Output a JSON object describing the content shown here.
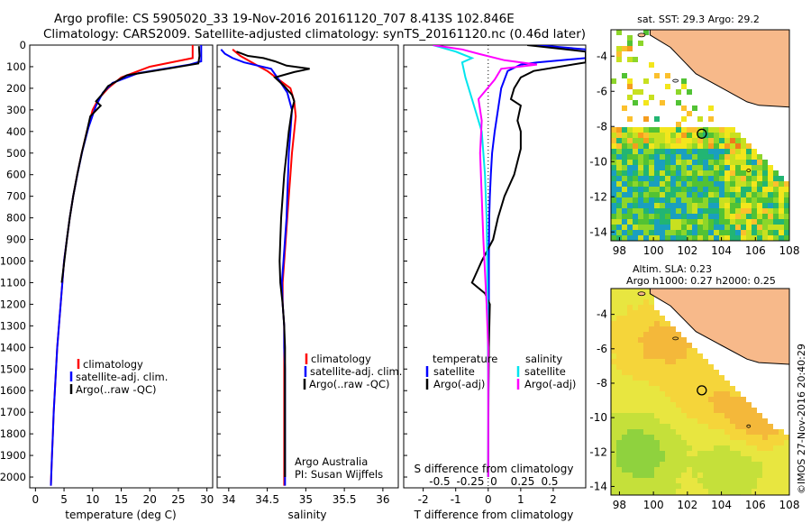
{
  "header": {
    "line1": "Argo profile: CS 5905020_33 19-Nov-2016 20161120_707 8.413S 102.846E",
    "line2": "Climatology: CARS2009. Satellite-adjusted climatology: synTS_20161120.nc (0.46d later)"
  },
  "colors": {
    "climatology": "#ff0000",
    "satellite": "#0000ff",
    "argo": "#000000",
    "sat_salinity": "#00e5ee",
    "argo_salinity": "#ff00ff",
    "land": "#f7b98a"
  },
  "chart_data": [
    {
      "type": "line",
      "id": "temperature",
      "xlabel": "temperature (deg C)",
      "ylabel": "",
      "xlim": [
        -1,
        31
      ],
      "ylim": [
        2050,
        0
      ],
      "xticks": [
        "0",
        "5",
        "10",
        "15",
        "20",
        "25",
        "30"
      ],
      "yticks": [
        "0",
        "100",
        "200",
        "300",
        "400",
        "500",
        "600",
        "700",
        "800",
        "900",
        "1000",
        "1100",
        "1200",
        "1300",
        "1400",
        "1500",
        "1600",
        "1700",
        "1800",
        "1900",
        "2000"
      ],
      "legend": [
        "climatology",
        "satellite-adj. clim.",
        "Argo(..raw -QC)"
      ],
      "series": [
        {
          "name": "climatology",
          "color": "red",
          "points": [
            [
              27.5,
              0
            ],
            [
              27.5,
              60
            ],
            [
              20,
              100
            ],
            [
              15,
              150
            ],
            [
              12.7,
              200
            ],
            [
              11,
              250
            ],
            [
              10,
              300
            ],
            [
              9,
              400
            ],
            [
              8.1,
              500
            ],
            [
              7.3,
              600
            ],
            [
              6.6,
              700
            ],
            [
              6,
              800
            ],
            [
              5.5,
              900
            ],
            [
              5,
              1000
            ],
            [
              4.7,
              1100
            ],
            [
              4.4,
              1200
            ],
            [
              4.1,
              1300
            ],
            [
              3.8,
              1400
            ],
            [
              3.6,
              1500
            ],
            [
              3.4,
              1600
            ],
            [
              3.2,
              1700
            ],
            [
              3.05,
              1800
            ],
            [
              2.9,
              1900
            ],
            [
              2.75,
              2000
            ],
            [
              2.7,
              2040
            ]
          ]
        },
        {
          "name": "satellite-adj. clim.",
          "color": "blue",
          "points": [
            [
              29,
              0
            ],
            [
              29,
              75
            ],
            [
              27,
              90
            ],
            [
              18,
              130
            ],
            [
              13.5,
              175
            ],
            [
              11.8,
              220
            ],
            [
              10.6,
              280
            ],
            [
              9.3,
              380
            ],
            [
              8.2,
              490
            ],
            [
              7.4,
              590
            ],
            [
              6.6,
              700
            ],
            [
              6,
              800
            ],
            [
              5.5,
              900
            ],
            [
              5,
              1000
            ],
            [
              4.7,
              1100
            ],
            [
              4.4,
              1200
            ],
            [
              4.1,
              1300
            ],
            [
              3.8,
              1400
            ],
            [
              3.6,
              1500
            ],
            [
              3.4,
              1600
            ],
            [
              3.2,
              1700
            ],
            [
              3.05,
              1800
            ],
            [
              2.9,
              1900
            ],
            [
              2.75,
              2000
            ],
            [
              2.7,
              2040
            ]
          ]
        },
        {
          "name": "Argo(..raw -QC)",
          "color": "black",
          "points": [
            [
              28.6,
              5
            ],
            [
              28.7,
              50
            ],
            [
              28.5,
              85
            ],
            [
              23,
              110
            ],
            [
              16,
              140
            ],
            [
              12.7,
              190
            ],
            [
              11.6,
              230
            ],
            [
              10.6,
              260
            ],
            [
              11.4,
              280
            ],
            [
              9.6,
              330
            ],
            [
              9,
              400
            ],
            [
              8.1,
              500
            ],
            [
              7.3,
              600
            ],
            [
              6.6,
              700
            ],
            [
              6,
              800
            ],
            [
              5.5,
              900
            ],
            [
              5.05,
              1000
            ],
            [
              4.6,
              1100
            ]
          ]
        }
      ]
    },
    {
      "type": "line",
      "id": "salinity",
      "xlabel": "salinity",
      "ylabel": "",
      "xlim": [
        33.85,
        36.2
      ],
      "ylim": [
        2050,
        0
      ],
      "xticks": [
        "34",
        "34.5",
        "35",
        "35.5",
        "36"
      ],
      "legend": [
        "climatology",
        "satellite-adj. clim.",
        "Argo(..raw -QC)"
      ],
      "annotations": [
        "Argo Australia",
        "PI: Susan Wijffels"
      ],
      "series": [
        {
          "name": "climatology",
          "color": "red",
          "points": [
            [
              34.05,
              20
            ],
            [
              34.15,
              50
            ],
            [
              34.35,
              90
            ],
            [
              34.5,
              120
            ],
            [
              34.65,
              160
            ],
            [
              34.8,
              200
            ],
            [
              34.85,
              260
            ],
            [
              34.87,
              330
            ],
            [
              34.85,
              400
            ],
            [
              34.82,
              500
            ],
            [
              34.8,
              600
            ],
            [
              34.78,
              700
            ],
            [
              34.76,
              800
            ],
            [
              34.74,
              900
            ],
            [
              34.72,
              1000
            ],
            [
              34.7,
              1100
            ],
            [
              34.7,
              1200
            ],
            [
              34.72,
              1300
            ],
            [
              34.72,
              1400
            ],
            [
              34.72,
              1500
            ],
            [
              34.72,
              1600
            ],
            [
              34.72,
              1700
            ],
            [
              34.72,
              1800
            ],
            [
              34.72,
              1900
            ],
            [
              34.72,
              2000
            ],
            [
              34.72,
              2040
            ]
          ]
        },
        {
          "name": "satellite-adj. clim.",
          "color": "blue",
          "points": [
            [
              33.9,
              20
            ],
            [
              33.95,
              40
            ],
            [
              34.05,
              60
            ],
            [
              34.2,
              80
            ],
            [
              34.55,
              110
            ],
            [
              34.65,
              160
            ],
            [
              34.76,
              220
            ],
            [
              34.82,
              300
            ],
            [
              34.8,
              400
            ],
            [
              34.78,
              500
            ],
            [
              34.77,
              600
            ],
            [
              34.76,
              700
            ],
            [
              34.75,
              800
            ],
            [
              34.73,
              900
            ],
            [
              34.71,
              1000
            ],
            [
              34.69,
              1100
            ],
            [
              34.7,
              1200
            ],
            [
              34.72,
              1300
            ],
            [
              34.72,
              1400
            ],
            [
              34.73,
              1500
            ],
            [
              34.73,
              1600
            ],
            [
              34.73,
              1700
            ],
            [
              34.73,
              1800
            ],
            [
              34.73,
              1900
            ],
            [
              34.73,
              2000
            ],
            [
              34.73,
              2040
            ]
          ]
        },
        {
          "name": "Argo(..raw -QC)",
          "color": "black",
          "points": [
            [
              34.1,
              30
            ],
            [
              34.25,
              50
            ],
            [
              34.45,
              60
            ],
            [
              34.6,
              75
            ],
            [
              34.75,
              95
            ],
            [
              35.05,
              110
            ],
            [
              34.85,
              125
            ],
            [
              34.6,
              150
            ],
            [
              34.72,
              190
            ],
            [
              34.82,
              230
            ],
            [
              34.85,
              260
            ],
            [
              34.82,
              300
            ],
            [
              34.78,
              400
            ],
            [
              34.75,
              500
            ],
            [
              34.72,
              600
            ],
            [
              34.7,
              700
            ],
            [
              34.68,
              800
            ],
            [
              34.67,
              900
            ],
            [
              34.66,
              1000
            ],
            [
              34.67,
              1100
            ],
            [
              34.7,
              1200
            ],
            [
              34.72,
              1300
            ],
            [
              34.73,
              1400
            ],
            [
              34.73,
              1500
            ],
            [
              34.73,
              1600
            ],
            [
              34.73,
              1700
            ],
            [
              34.73,
              1800
            ],
            [
              34.73,
              1900
            ],
            [
              34.73,
              2000
            ]
          ]
        }
      ]
    },
    {
      "type": "line",
      "id": "difference",
      "xlabel": "T difference from climatology",
      "ylabel": "",
      "title_bottom": "S difference from climatology",
      "xlim": [
        -2.6,
        3
      ],
      "ylim": [
        2050,
        0
      ],
      "xticks": [
        "-2",
        "-1",
        "0",
        "1",
        "2"
      ],
      "sticks": [
        "-0.5",
        "-0.25",
        "0",
        "0.25",
        "0.5"
      ],
      "legend_left_title": "temperature",
      "legend_right_title": "salinity",
      "legend": [
        "satellite",
        "Argo(-adj)",
        "satellite",
        "Argo(-adj)"
      ],
      "series": [
        {
          "name": "satellite",
          "kind": "temperature",
          "color": "blue",
          "points": [
            [
              1.5,
              0
            ],
            [
              3,
              20
            ],
            [
              3,
              60
            ],
            [
              1.5,
              80
            ],
            [
              1.0,
              90
            ],
            [
              0.6,
              120
            ],
            [
              0.4,
              200
            ],
            [
              0.3,
              300
            ],
            [
              0.2,
              400
            ],
            [
              0.12,
              500
            ],
            [
              0.08,
              600
            ],
            [
              0.05,
              700
            ],
            [
              0.03,
              800
            ],
            [
              0.02,
              1000
            ],
            [
              0.02,
              1200
            ],
            [
              0.01,
              1500
            ],
            [
              0,
              2000
            ]
          ]
        },
        {
          "name": "Argo(-adj)",
          "kind": "temperature",
          "color": "black",
          "points": [
            [
              1.2,
              0
            ],
            [
              3,
              30
            ],
            [
              3,
              80
            ],
            [
              1.4,
              120
            ],
            [
              1.0,
              150
            ],
            [
              0.8,
              200
            ],
            [
              0.7,
              250
            ],
            [
              1.0,
              280
            ],
            [
              0.9,
              350
            ],
            [
              1.0,
              400
            ],
            [
              1.0,
              480
            ],
            [
              0.8,
              600
            ],
            [
              0.5,
              700
            ],
            [
              0.3,
              800
            ],
            [
              0.15,
              900
            ],
            [
              -0.2,
              1000
            ],
            [
              -0.35,
              1050
            ],
            [
              -0.5,
              1100
            ],
            [
              -0.1,
              1150
            ],
            [
              0.05,
              1200
            ],
            [
              0.02,
              1400
            ],
            [
              0.01,
              1600
            ],
            [
              0,
              2000
            ]
          ]
        },
        {
          "name": "satellite",
          "kind": "salinity",
          "color": "cyan",
          "points": [
            [
              -1.7,
              0
            ],
            [
              -1.0,
              30
            ],
            [
              -0.5,
              60
            ],
            [
              -0.8,
              80
            ],
            [
              -0.7,
              150
            ],
            [
              -0.5,
              250
            ],
            [
              -0.2,
              400
            ],
            [
              -0.1,
              600
            ],
            [
              -0.05,
              800
            ],
            [
              -0.03,
              1000
            ],
            [
              -0.02,
              1200
            ],
            [
              0,
              1600
            ],
            [
              0,
              2000
            ]
          ]
        },
        {
          "name": "Argo(-adj)",
          "kind": "salinity",
          "color": "magenta",
          "points": [
            [
              -1.7,
              0
            ],
            [
              -0.8,
              20
            ],
            [
              -0.3,
              40
            ],
            [
              0.5,
              70
            ],
            [
              1.5,
              90
            ],
            [
              0.4,
              110
            ],
            [
              0.2,
              160
            ],
            [
              -0.3,
              250
            ],
            [
              -0.2,
              350
            ],
            [
              -0.25,
              500
            ],
            [
              -0.2,
              700
            ],
            [
              -0.15,
              900
            ],
            [
              -0.1,
              1050
            ],
            [
              -0.05,
              1200
            ],
            [
              0,
              1400
            ],
            [
              0,
              2000
            ]
          ]
        }
      ]
    },
    {
      "type": "heatmap",
      "id": "sst_map",
      "title": "sat. SST: 29.3  Argo: 29.2",
      "xticks": [
        "98",
        "100",
        "102",
        "104",
        "106",
        "108"
      ],
      "yticks": [
        "-4",
        "-6",
        "-8",
        "-10",
        "-12",
        "-14"
      ],
      "xlim": [
        97.5,
        108
      ],
      "ylim": [
        -14.5,
        -2.5
      ],
      "argo_position": [
        102.846,
        -8.413
      ]
    },
    {
      "type": "heatmap",
      "id": "sla_map",
      "title": "Altim. SLA: 0.23",
      "subtitle": "Argo h1000: 0.27 h2000: 0.25",
      "xticks": [
        "98",
        "100",
        "102",
        "104",
        "106",
        "108"
      ],
      "yticks": [
        "-4",
        "-6",
        "-8",
        "-10",
        "-12",
        "-14"
      ],
      "xlim": [
        97.5,
        108
      ],
      "ylim": [
        -14.5,
        -2.5
      ],
      "argo_position": [
        102.846,
        -8.413
      ]
    }
  ],
  "footer": {
    "credit": "©IMOS 27-Nov-2016 20:40:29"
  }
}
